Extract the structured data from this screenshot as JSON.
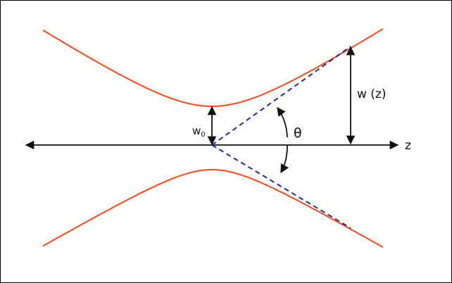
{
  "labels": {
    "waist": "w",
    "waist_sub": "0",
    "beam_radius": "w (z)",
    "angle": "θ",
    "axis": "z"
  },
  "colors": {
    "beam": "#f04a1e",
    "asymptote": "#1f2f8f",
    "axis": "#111111"
  }
}
